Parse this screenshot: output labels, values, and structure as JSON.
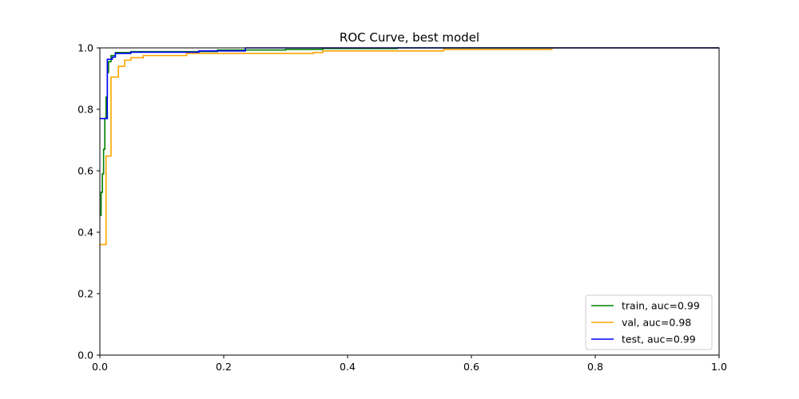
{
  "chart_data": {
    "type": "line",
    "title": "ROC Curve, best model",
    "xlabel": "",
    "ylabel": "",
    "xlim": [
      0.0,
      1.0
    ],
    "ylim": [
      0.0,
      1.0
    ],
    "x_ticks": [
      "0.0",
      "0.2",
      "0.4",
      "0.6",
      "0.8",
      "1.0"
    ],
    "y_ticks": [
      "0.0",
      "0.2",
      "0.4",
      "0.6",
      "0.8",
      "1.0"
    ],
    "grid": false,
    "legend_position": "lower right",
    "series": [
      {
        "name": "train, auc=0.99",
        "color": "#008000",
        "x": [
          0.0,
          0.002,
          0.002,
          0.004,
          0.004,
          0.006,
          0.006,
          0.008,
          0.008,
          0.01,
          0.01,
          0.012,
          0.012,
          0.014,
          0.014,
          0.018,
          0.018,
          0.025,
          0.025,
          0.05,
          0.05,
          0.19,
          0.19,
          0.3,
          0.3,
          0.36,
          0.36,
          0.48,
          0.48,
          1.0
        ],
        "y": [
          0.455,
          0.455,
          0.53,
          0.53,
          0.59,
          0.59,
          0.67,
          0.67,
          0.77,
          0.77,
          0.84,
          0.84,
          0.92,
          0.92,
          0.955,
          0.955,
          0.975,
          0.975,
          0.985,
          0.985,
          0.988,
          0.988,
          0.993,
          0.993,
          0.995,
          0.995,
          0.998,
          0.998,
          1.0,
          1.0
        ]
      },
      {
        "name": "val, auc=0.98",
        "color": "#ffa500",
        "x": [
          0.0,
          0.01,
          0.01,
          0.018,
          0.018,
          0.03,
          0.03,
          0.04,
          0.04,
          0.05,
          0.05,
          0.07,
          0.07,
          0.14,
          0.14,
          0.345,
          0.345,
          0.36,
          0.36,
          0.555,
          0.555,
          0.73,
          0.73,
          1.0
        ],
        "y": [
          0.36,
          0.36,
          0.648,
          0.648,
          0.905,
          0.905,
          0.94,
          0.94,
          0.96,
          0.96,
          0.968,
          0.968,
          0.975,
          0.975,
          0.982,
          0.982,
          0.985,
          0.985,
          0.99,
          0.99,
          0.995,
          0.995,
          1.0,
          1.0
        ]
      },
      {
        "name": "test, auc=0.99",
        "color": "#0000ff",
        "x": [
          0.0,
          0.012,
          0.012,
          0.02,
          0.02,
          0.025,
          0.025,
          0.05,
          0.05,
          0.16,
          0.16,
          0.235,
          0.235,
          1.0
        ],
        "y": [
          0.77,
          0.77,
          0.963,
          0.963,
          0.97,
          0.97,
          0.982,
          0.982,
          0.986,
          0.986,
          0.99,
          0.99,
          1.0,
          1.0
        ]
      }
    ]
  }
}
